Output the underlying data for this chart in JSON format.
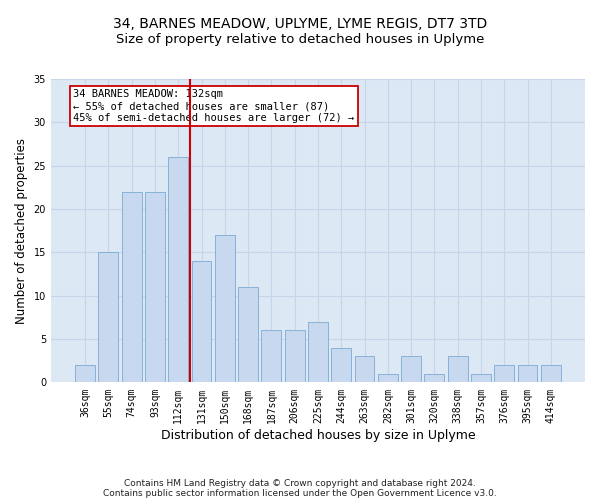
{
  "title": "34, BARNES MEADOW, UPLYME, LYME REGIS, DT7 3TD",
  "subtitle": "Size of property relative to detached houses in Uplyme",
  "xlabel": "Distribution of detached houses by size in Uplyme",
  "ylabel": "Number of detached properties",
  "categories": [
    "36sqm",
    "55sqm",
    "74sqm",
    "93sqm",
    "112sqm",
    "131sqm",
    "150sqm",
    "168sqm",
    "187sqm",
    "206sqm",
    "225sqm",
    "244sqm",
    "263sqm",
    "282sqm",
    "301sqm",
    "320sqm",
    "338sqm",
    "357sqm",
    "376sqm",
    "395sqm",
    "414sqm"
  ],
  "values": [
    2,
    15,
    22,
    22,
    26,
    14,
    17,
    11,
    6,
    6,
    7,
    4,
    3,
    1,
    3,
    1,
    3,
    1,
    2,
    2,
    2
  ],
  "bar_color": "#c8d9ef",
  "bar_edge_color": "#7aaad4",
  "red_line_x": 4.5,
  "highlight_line_color": "#cc0000",
  "annotation_line1": "34 BARNES MEADOW: 132sqm",
  "annotation_line2": "← 55% of detached houses are smaller (87)",
  "annotation_line3": "45% of semi-detached houses are larger (72) →",
  "annotation_box_color": "#ffffff",
  "annotation_box_edge": "#cc0000",
  "ylim": [
    0,
    35
  ],
  "yticks": [
    0,
    5,
    10,
    15,
    20,
    25,
    30,
    35
  ],
  "grid_color": "#c8d4e8",
  "background_color": "#dde8f5",
  "footer_line1": "Contains HM Land Registry data © Crown copyright and database right 2024.",
  "footer_line2": "Contains public sector information licensed under the Open Government Licence v3.0.",
  "title_fontsize": 10,
  "subtitle_fontsize": 9.5,
  "xlabel_fontsize": 9,
  "ylabel_fontsize": 8.5,
  "tick_fontsize": 7,
  "annotation_fontsize": 7.5,
  "footer_fontsize": 6.5
}
